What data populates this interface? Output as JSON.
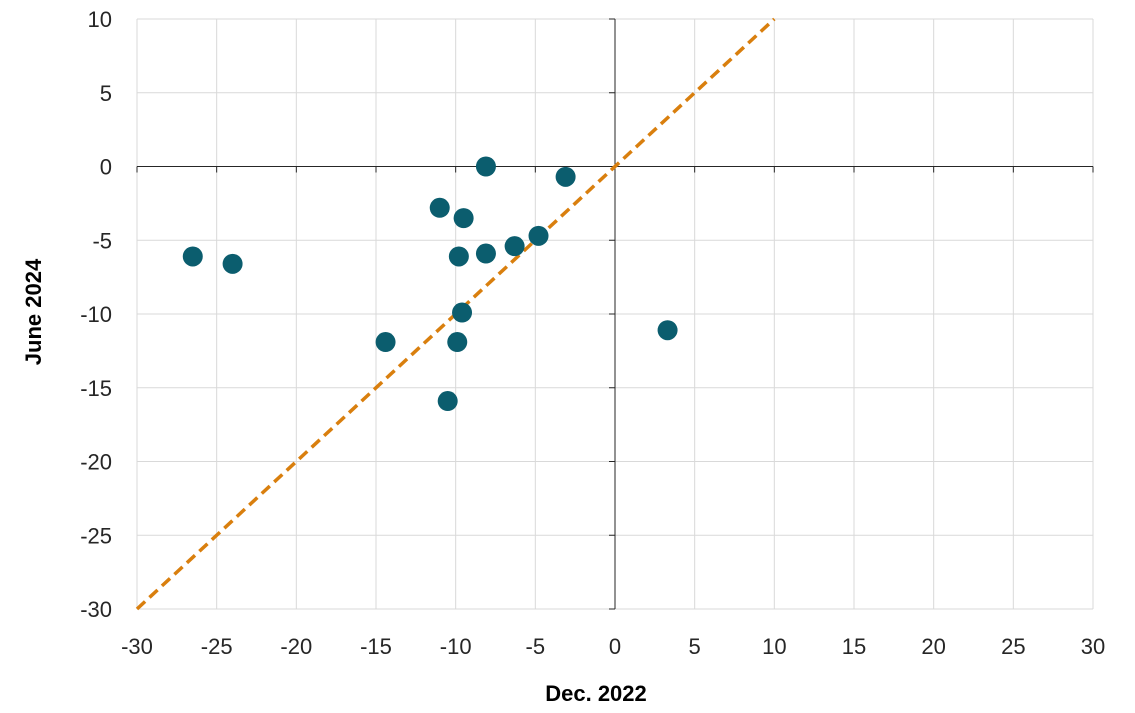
{
  "chart_data": {
    "type": "scatter",
    "title": "",
    "xlabel": "Dec. 2022",
    "ylabel": "June 2024",
    "xlim": [
      -30,
      30
    ],
    "ylim": [
      -30,
      10
    ],
    "x_ticks": [
      -30,
      -25,
      -20,
      -15,
      -10,
      -5,
      0,
      5,
      10,
      15,
      20,
      25,
      30
    ],
    "y_ticks": [
      -30,
      -25,
      -20,
      -15,
      -10,
      -5,
      0,
      5,
      10
    ],
    "grid": true,
    "legend": "none",
    "series": [
      {
        "marker_color": "#0b5d6e",
        "points": [
          {
            "x": -26.5,
            "y": -6.1
          },
          {
            "x": -24.0,
            "y": -6.6
          },
          {
            "x": -14.4,
            "y": -11.9
          },
          {
            "x": -11.0,
            "y": -2.8
          },
          {
            "x": -10.5,
            "y": -15.9
          },
          {
            "x": -9.9,
            "y": -11.9
          },
          {
            "x": -9.8,
            "y": -6.1
          },
          {
            "x": -9.6,
            "y": -9.9
          },
          {
            "x": -9.5,
            "y": -3.5
          },
          {
            "x": -8.1,
            "y": 0.0
          },
          {
            "x": -8.1,
            "y": -5.9
          },
          {
            "x": -6.3,
            "y": -5.4
          },
          {
            "x": -4.8,
            "y": -4.7
          },
          {
            "x": -3.1,
            "y": -0.7
          },
          {
            "x": 3.3,
            "y": -11.1
          }
        ]
      }
    ],
    "reference_line": {
      "style": "dashed",
      "color": "#d97f0e",
      "from": {
        "x": -30,
        "y": -30
      },
      "to": {
        "x": 10,
        "y": 10
      }
    }
  }
}
